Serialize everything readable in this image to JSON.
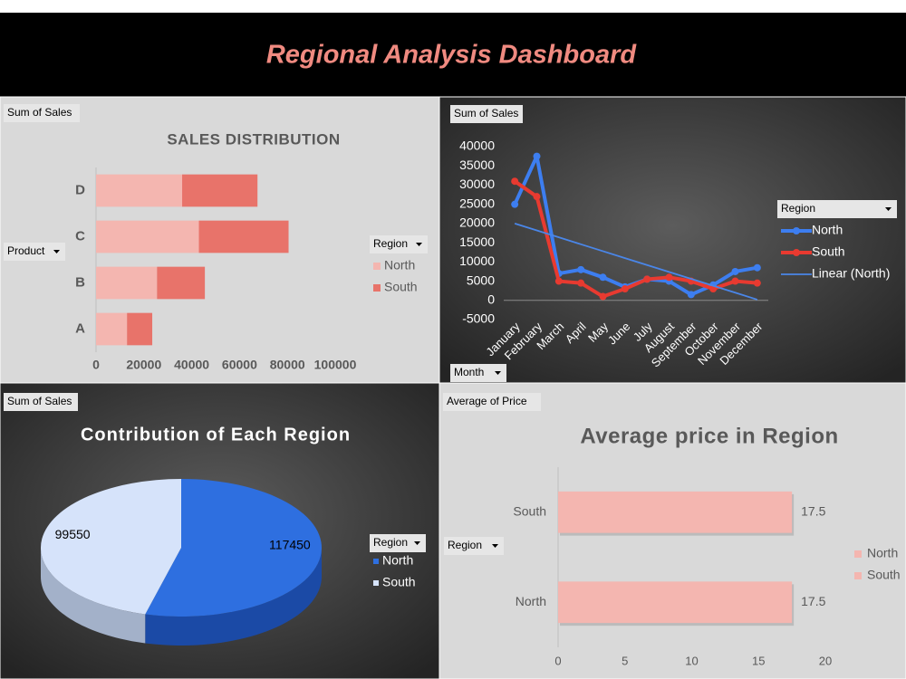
{
  "title": "Regional Analysis Dashboard",
  "chart_data": [
    {
      "type": "bar",
      "orientation": "horizontal",
      "stacked": true,
      "title": "SALES DISTRIBUTION",
      "value_field": "Sum of Sales",
      "row_field": "Product",
      "legend_title": "Region",
      "categories": [
        "A",
        "B",
        "C",
        "D"
      ],
      "series": [
        {
          "name": "North",
          "color": "#f4b6b0",
          "values": [
            12950,
            25500,
            43000,
            36000
          ]
        },
        {
          "name": "South",
          "color": "#e8736a",
          "values": [
            10550,
            20000,
            37500,
            31500
          ]
        }
      ],
      "xlim": [
        0,
        100000
      ],
      "xticks": [
        0,
        20000,
        40000,
        60000,
        80000,
        100000
      ]
    },
    {
      "type": "line",
      "value_field": "Sum of Sales",
      "row_field": "Month",
      "legend_title": "Region",
      "categories": [
        "January",
        "February",
        "March",
        "April",
        "May",
        "June",
        "July",
        "August",
        "September",
        "October",
        "November",
        "December"
      ],
      "series": [
        {
          "name": "North",
          "color": "#3d7ef0",
          "values": [
            25000,
            37500,
            7000,
            8000,
            6000,
            3500,
            5500,
            5000,
            1500,
            4000,
            7500,
            8500
          ]
        },
        {
          "name": "South",
          "color": "#e83a30",
          "values": [
            31000,
            27000,
            5000,
            4500,
            1000,
            3000,
            5500,
            6000,
            5000,
            3000,
            5000,
            4500
          ]
        },
        {
          "name": "Linear (North)",
          "color": "#4a86e8",
          "trendline": true,
          "values": [
            20000,
            18200,
            16400,
            14600,
            12800,
            11000,
            9200,
            7400,
            5600,
            3800,
            2000,
            200
          ]
        }
      ],
      "ylim": [
        -5000,
        40000
      ],
      "yticks": [
        -5000,
        0,
        5000,
        10000,
        15000,
        20000,
        25000,
        30000,
        35000,
        40000
      ]
    },
    {
      "type": "pie",
      "title": "Contribution of Each Region",
      "value_field": "Sum of Sales",
      "legend_title": "Region",
      "categories": [
        "North",
        "South"
      ],
      "values": [
        117450,
        99550
      ],
      "colors": [
        "#2e6fe0",
        "#d6e3fa"
      ]
    },
    {
      "type": "bar",
      "orientation": "horizontal",
      "title": "Average price in Region",
      "value_field": "Average of Price",
      "row_field": "Region",
      "categories": [
        "North",
        "South"
      ],
      "values": [
        17.5,
        17.5
      ],
      "color": "#f4b6b0",
      "legend": [
        "North",
        "South"
      ],
      "xlim": [
        0,
        20
      ],
      "xticks": [
        0,
        5,
        10,
        15,
        20
      ]
    }
  ]
}
